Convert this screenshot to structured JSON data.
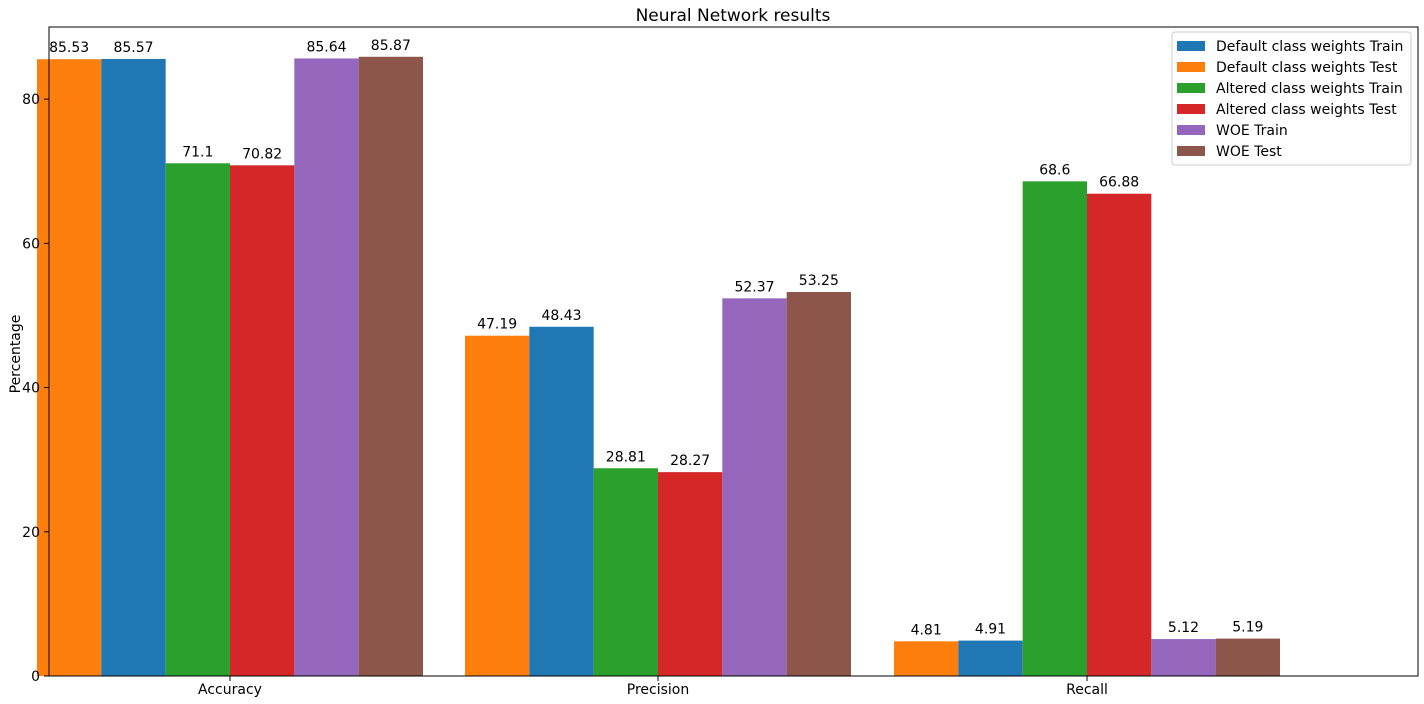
{
  "chart_data": {
    "type": "bar",
    "title": "Neural Network results",
    "xlabel": "",
    "ylabel": "Percentage",
    "categories": [
      "Accuracy",
      "Precision",
      "Recall"
    ],
    "ylim": [
      0,
      90
    ],
    "yticks": [
      0,
      20,
      40,
      60,
      80
    ],
    "grid": false,
    "legend_position": "top-right",
    "series": [
      {
        "name": "Default class weights Test",
        "color": "#ff7f0e",
        "values": [
          85.53,
          47.19,
          4.81
        ],
        "labels": [
          "85.53",
          "47.19",
          "4.81"
        ]
      },
      {
        "name": "Default class weights Train",
        "color": "#1f77b4",
        "values": [
          85.57,
          48.43,
          4.91
        ],
        "labels": [
          "85.57",
          "48.43",
          "4.91"
        ]
      },
      {
        "name": "Altered class weights Train",
        "color": "#2ca02c",
        "values": [
          71.1,
          28.81,
          68.6
        ],
        "labels": [
          "71.1",
          "28.81",
          "68.6"
        ]
      },
      {
        "name": "Altered class weights Test",
        "color": "#d62728",
        "values": [
          70.82,
          28.27,
          66.88
        ],
        "labels": [
          "70.82",
          "28.27",
          "66.88"
        ]
      },
      {
        "name": "WOE Train",
        "color": "#9467bd",
        "values": [
          85.64,
          52.37,
          5.12
        ],
        "labels": [
          "85.64",
          "52.37",
          "5.12"
        ]
      },
      {
        "name": "WOE Test",
        "color": "#8c564b",
        "values": [
          85.87,
          53.25,
          5.19
        ],
        "labels": [
          "85.87",
          "53.25",
          "5.19"
        ]
      }
    ],
    "legend_order": [
      1,
      0,
      2,
      3,
      4,
      5
    ]
  }
}
